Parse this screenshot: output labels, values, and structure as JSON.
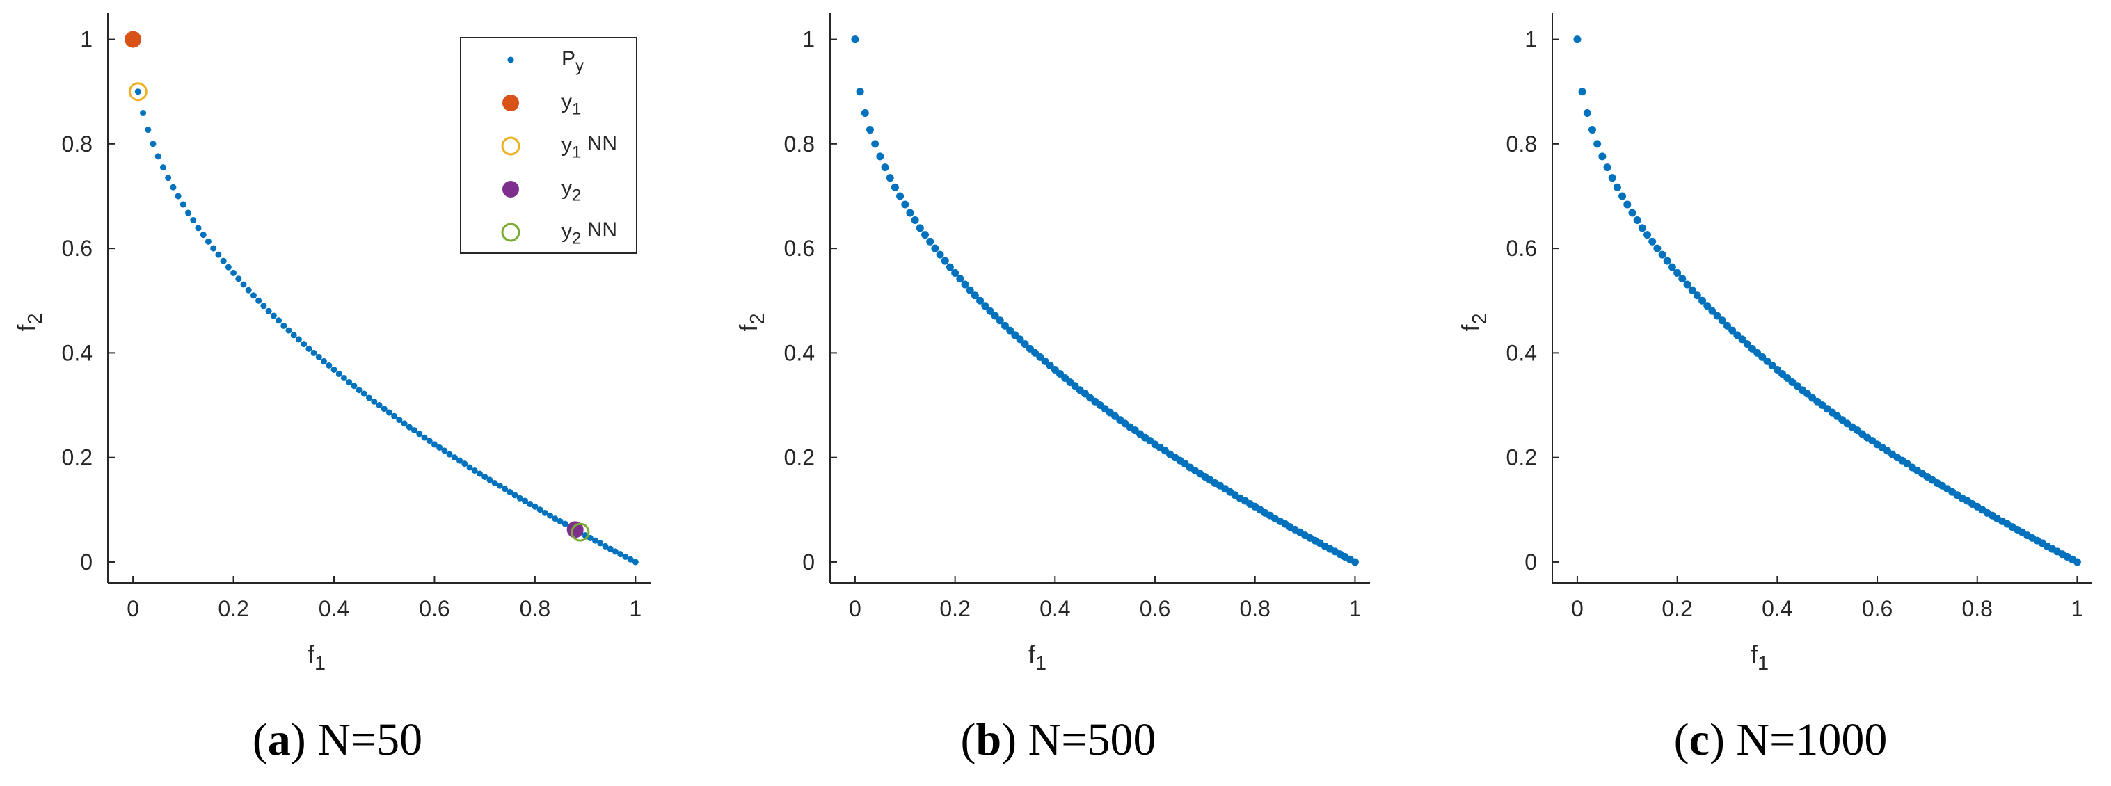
{
  "chart_data": [
    {
      "type": "scatter",
      "caption": "(a) N=50",
      "xlabel": "f1",
      "ylabel": "f2",
      "xlim": [
        -0.05,
        1.03
      ],
      "ylim": [
        -0.04,
        1.05
      ],
      "xticks": [
        0,
        0.2,
        0.4,
        0.6,
        0.8,
        1
      ],
      "yticks": [
        0,
        0.2,
        0.4,
        0.6,
        0.8,
        1
      ],
      "legend": "upper right",
      "series": [
        {
          "name": "Py",
          "color": "#0072bd",
          "marker": "dot",
          "x": [
            0,
            0.01,
            0.02,
            0.03,
            0.04,
            0.05,
            0.06,
            0.07,
            0.08,
            0.09,
            0.1,
            0.11,
            0.12,
            0.13,
            0.14,
            0.15,
            0.16,
            0.17,
            0.18,
            0.19,
            0.2,
            0.21,
            0.22,
            0.23,
            0.24,
            0.25,
            0.26,
            0.27,
            0.28,
            0.29,
            0.3,
            0.31,
            0.32,
            0.33,
            0.34,
            0.35,
            0.36,
            0.37,
            0.38,
            0.39,
            0.4,
            0.41,
            0.42,
            0.43,
            0.44,
            0.45,
            0.46,
            0.47,
            0.48,
            0.49,
            0.5,
            0.51,
            0.52,
            0.53,
            0.54,
            0.55,
            0.56,
            0.57,
            0.58,
            0.59,
            0.6,
            0.61,
            0.62,
            0.63,
            0.64,
            0.65,
            0.66,
            0.67,
            0.68,
            0.69,
            0.7,
            0.71,
            0.72,
            0.73,
            0.74,
            0.75,
            0.76,
            0.77,
            0.78,
            0.79,
            0.8,
            0.81,
            0.82,
            0.83,
            0.84,
            0.85,
            0.86,
            0.87,
            0.88,
            0.89,
            0.9,
            0.91,
            0.92,
            0.93,
            0.94,
            0.95,
            0.96,
            0.97,
            0.98,
            0.99,
            1
          ],
          "values": [
            1,
            0.9,
            0.859,
            0.827,
            0.8,
            0.776,
            0.755,
            0.735,
            0.717,
            0.7,
            0.684,
            0.668,
            0.654,
            0.639,
            0.626,
            0.613,
            0.6,
            0.588,
            0.576,
            0.564,
            0.553,
            0.542,
            0.531,
            0.52,
            0.51,
            0.5,
            0.49,
            0.48,
            0.471,
            0.462,
            0.452,
            0.443,
            0.434,
            0.426,
            0.417,
            0.408,
            0.4,
            0.392,
            0.384,
            0.376,
            0.368,
            0.36,
            0.352,
            0.344,
            0.337,
            0.329,
            0.322,
            0.314,
            0.307,
            0.3,
            0.293,
            0.286,
            0.279,
            0.272,
            0.265,
            0.258,
            0.252,
            0.245,
            0.238,
            0.232,
            0.225,
            0.219,
            0.213,
            0.206,
            0.2,
            0.194,
            0.188,
            0.181,
            0.175,
            0.169,
            0.163,
            0.157,
            0.151,
            0.146,
            0.14,
            0.134,
            0.128,
            0.122,
            0.117,
            0.111,
            0.106,
            0.1,
            0.094,
            0.089,
            0.083,
            0.078,
            0.073,
            0.067,
            0.062,
            0.057,
            0.051,
            0.046,
            0.041,
            0.036,
            0.03,
            0.025,
            0.02,
            0.015,
            0.01,
            0.005,
            0
          ]
        },
        {
          "name": "y1",
          "color": "#d95319",
          "marker": "filled",
          "x": [
            0
          ],
          "values": [
            1
          ]
        },
        {
          "name": "y1 NN",
          "color": "#edb120",
          "marker": "open",
          "x": [
            0.01
          ],
          "values": [
            0.9
          ]
        },
        {
          "name": "y2",
          "color": "#7e2f8e",
          "marker": "filled",
          "x": [
            0.88
          ],
          "values": [
            0.062
          ]
        },
        {
          "name": "y2 NN",
          "color": "#77ac30",
          "marker": "open",
          "x": [
            0.89
          ],
          "values": [
            0.057
          ]
        }
      ]
    },
    {
      "type": "scatter",
      "caption": "(b) N=500",
      "xlabel": "f1",
      "ylabel": "f2",
      "xlim": [
        -0.05,
        1.03
      ],
      "ylim": [
        -0.04,
        1.05
      ],
      "xticks": [
        0,
        0.2,
        0.4,
        0.6,
        0.8,
        1
      ],
      "yticks": [
        0,
        0.2,
        0.4,
        0.6,
        0.8,
        1
      ],
      "series": [
        {
          "color": "#0072bd",
          "marker": "dense",
          "x": [
            0,
            0.01,
            0.02,
            0.03,
            0.04,
            0.05,
            0.06,
            0.07,
            0.08,
            0.09,
            0.1,
            0.11,
            0.12,
            0.13,
            0.14,
            0.15,
            0.16,
            0.17,
            0.18,
            0.19,
            0.2,
            0.21,
            0.22,
            0.23,
            0.24,
            0.25,
            0.26,
            0.27,
            0.28,
            0.29,
            0.3,
            0.31,
            0.32,
            0.33,
            0.34,
            0.35,
            0.36,
            0.37,
            0.38,
            0.39,
            0.4,
            0.41,
            0.42,
            0.43,
            0.44,
            0.45,
            0.46,
            0.47,
            0.48,
            0.49,
            0.5,
            0.51,
            0.52,
            0.53,
            0.54,
            0.55,
            0.56,
            0.57,
            0.58,
            0.59,
            0.6,
            0.61,
            0.62,
            0.63,
            0.64,
            0.65,
            0.66,
            0.67,
            0.68,
            0.69,
            0.7,
            0.71,
            0.72,
            0.73,
            0.74,
            0.75,
            0.76,
            0.77,
            0.78,
            0.79,
            0.8,
            0.81,
            0.82,
            0.83,
            0.84,
            0.85,
            0.86,
            0.87,
            0.88,
            0.89,
            0.9,
            0.91,
            0.92,
            0.93,
            0.94,
            0.95,
            0.96,
            0.97,
            0.98,
            0.99,
            1
          ],
          "values": [
            1,
            0.9,
            0.859,
            0.827,
            0.8,
            0.776,
            0.755,
            0.735,
            0.717,
            0.7,
            0.684,
            0.668,
            0.654,
            0.639,
            0.626,
            0.613,
            0.6,
            0.588,
            0.576,
            0.564,
            0.553,
            0.542,
            0.531,
            0.52,
            0.51,
            0.5,
            0.49,
            0.48,
            0.471,
            0.462,
            0.452,
            0.443,
            0.434,
            0.426,
            0.417,
            0.408,
            0.4,
            0.392,
            0.384,
            0.376,
            0.368,
            0.36,
            0.352,
            0.344,
            0.337,
            0.329,
            0.322,
            0.314,
            0.307,
            0.3,
            0.293,
            0.286,
            0.279,
            0.272,
            0.265,
            0.258,
            0.252,
            0.245,
            0.238,
            0.232,
            0.225,
            0.219,
            0.213,
            0.206,
            0.2,
            0.194,
            0.188,
            0.181,
            0.175,
            0.169,
            0.163,
            0.157,
            0.151,
            0.146,
            0.14,
            0.134,
            0.128,
            0.122,
            0.117,
            0.111,
            0.106,
            0.1,
            0.094,
            0.089,
            0.083,
            0.078,
            0.073,
            0.067,
            0.062,
            0.057,
            0.051,
            0.046,
            0.041,
            0.036,
            0.03,
            0.025,
            0.02,
            0.015,
            0.01,
            0.005,
            0
          ]
        }
      ]
    },
    {
      "type": "scatter",
      "caption": "(c) N=1000",
      "xlabel": "f1",
      "ylabel": "f2",
      "xlim": [
        -0.05,
        1.03
      ],
      "ylim": [
        -0.04,
        1.05
      ],
      "xticks": [
        0,
        0.2,
        0.4,
        0.6,
        0.8,
        1
      ],
      "yticks": [
        0,
        0.2,
        0.4,
        0.6,
        0.8,
        1
      ],
      "series": [
        {
          "color": "#0072bd",
          "marker": "dense",
          "x": [
            0,
            0.01,
            0.02,
            0.03,
            0.04,
            0.05,
            0.06,
            0.07,
            0.08,
            0.09,
            0.1,
            0.11,
            0.12,
            0.13,
            0.14,
            0.15,
            0.16,
            0.17,
            0.18,
            0.19,
            0.2,
            0.21,
            0.22,
            0.23,
            0.24,
            0.25,
            0.26,
            0.27,
            0.28,
            0.29,
            0.3,
            0.31,
            0.32,
            0.33,
            0.34,
            0.35,
            0.36,
            0.37,
            0.38,
            0.39,
            0.4,
            0.41,
            0.42,
            0.43,
            0.44,
            0.45,
            0.46,
            0.47,
            0.48,
            0.49,
            0.5,
            0.51,
            0.52,
            0.53,
            0.54,
            0.55,
            0.56,
            0.57,
            0.58,
            0.59,
            0.6,
            0.61,
            0.62,
            0.63,
            0.64,
            0.65,
            0.66,
            0.67,
            0.68,
            0.69,
            0.7,
            0.71,
            0.72,
            0.73,
            0.74,
            0.75,
            0.76,
            0.77,
            0.78,
            0.79,
            0.8,
            0.81,
            0.82,
            0.83,
            0.84,
            0.85,
            0.86,
            0.87,
            0.88,
            0.89,
            0.9,
            0.91,
            0.92,
            0.93,
            0.94,
            0.95,
            0.96,
            0.97,
            0.98,
            0.99,
            1
          ],
          "values": [
            1,
            0.9,
            0.859,
            0.827,
            0.8,
            0.776,
            0.755,
            0.735,
            0.717,
            0.7,
            0.684,
            0.668,
            0.654,
            0.639,
            0.626,
            0.613,
            0.6,
            0.588,
            0.576,
            0.564,
            0.553,
            0.542,
            0.531,
            0.52,
            0.51,
            0.5,
            0.49,
            0.48,
            0.471,
            0.462,
            0.452,
            0.443,
            0.434,
            0.426,
            0.417,
            0.408,
            0.4,
            0.392,
            0.384,
            0.376,
            0.368,
            0.36,
            0.352,
            0.344,
            0.337,
            0.329,
            0.322,
            0.314,
            0.307,
            0.3,
            0.293,
            0.286,
            0.279,
            0.272,
            0.265,
            0.258,
            0.252,
            0.245,
            0.238,
            0.232,
            0.225,
            0.219,
            0.213,
            0.206,
            0.2,
            0.194,
            0.188,
            0.181,
            0.175,
            0.169,
            0.163,
            0.157,
            0.151,
            0.146,
            0.14,
            0.134,
            0.128,
            0.122,
            0.117,
            0.111,
            0.106,
            0.1,
            0.094,
            0.089,
            0.083,
            0.078,
            0.073,
            0.067,
            0.062,
            0.057,
            0.051,
            0.046,
            0.041,
            0.036,
            0.03,
            0.025,
            0.02,
            0.015,
            0.01,
            0.005,
            0
          ]
        }
      ]
    }
  ]
}
